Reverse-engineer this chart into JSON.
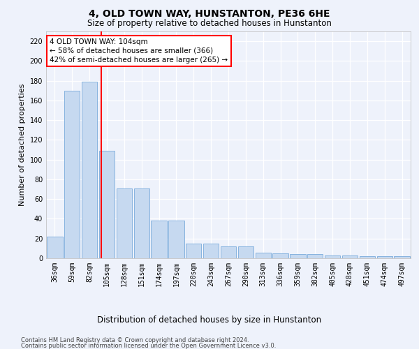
{
  "title": "4, OLD TOWN WAY, HUNSTANTON, PE36 6HE",
  "subtitle": "Size of property relative to detached houses in Hunstanton",
  "xlabel": "Distribution of detached houses by size in Hunstanton",
  "ylabel": "Number of detached properties",
  "categories": [
    "36sqm",
    "59sqm",
    "82sqm",
    "105sqm",
    "128sqm",
    "151sqm",
    "174sqm",
    "197sqm",
    "220sqm",
    "243sqm",
    "267sqm",
    "290sqm",
    "313sqm",
    "336sqm",
    "359sqm",
    "382sqm",
    "405sqm",
    "428sqm",
    "451sqm",
    "474sqm",
    "497sqm"
  ],
  "values": [
    22,
    170,
    179,
    109,
    71,
    71,
    38,
    38,
    15,
    15,
    12,
    12,
    6,
    5,
    4,
    4,
    3,
    3,
    2,
    2,
    2
  ],
  "bar_color": "#c6d9f0",
  "bar_edge_color": "#7AABDB",
  "ylim": [
    0,
    230
  ],
  "yticks": [
    0,
    20,
    40,
    60,
    80,
    100,
    120,
    140,
    160,
    180,
    200,
    220
  ],
  "red_line_x": 2.67,
  "annotation_line1": "4 OLD TOWN WAY: 104sqm",
  "annotation_line2": "← 58% of detached houses are smaller (366)",
  "annotation_line3": "42% of semi-detached houses are larger (265) →",
  "footer_line1": "Contains HM Land Registry data © Crown copyright and database right 2024.",
  "footer_line2": "Contains public sector information licensed under the Open Government Licence v3.0.",
  "background_color": "#eef2fb",
  "grid_color": "#ffffff",
  "title_fontsize": 10,
  "subtitle_fontsize": 8.5,
  "ylabel_fontsize": 8,
  "xlabel_fontsize": 8.5,
  "tick_fontsize": 7,
  "footer_fontsize": 6,
  "annot_fontsize": 7.5
}
